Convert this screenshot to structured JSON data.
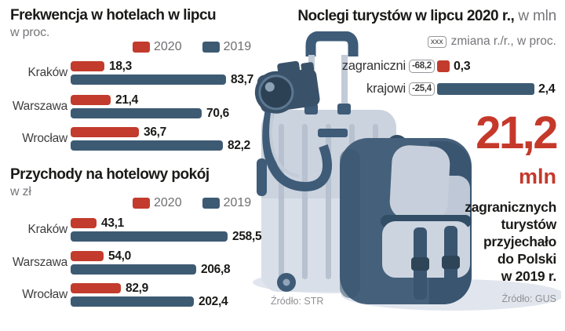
{
  "charts": {
    "occupancy": {
      "title": "Frekwencja w hotelach w lipcu",
      "subtitle": "w proc.",
      "legend": {
        "y2020": "2020",
        "y2019": "2019"
      },
      "rows": [
        {
          "city": "Kraków",
          "v2020": "18,3",
          "v2019": "83,7"
        },
        {
          "city": "Warszawa",
          "v2020": "21,4",
          "v2019": "70,6"
        },
        {
          "city": "Wrocław",
          "v2020": "36,7",
          "v2019": "82,2"
        }
      ]
    },
    "revenue": {
      "title": "Przychody na hotelowy pokój",
      "subtitle": "w zł",
      "legend": {
        "y2020": "2020",
        "y2019": "2019"
      },
      "rows": [
        {
          "city": "Kraków",
          "v2020": "43,1",
          "v2019": "258,5"
        },
        {
          "city": "Warszawa",
          "v2020": "54,0",
          "v2019": "206,8"
        },
        {
          "city": "Wrocław",
          "v2020": "82,9",
          "v2019": "202,4"
        }
      ]
    },
    "nights": {
      "title_bold": "Noclegi turystów w lipcu 2020 r.,",
      "title_light": " w mln",
      "note_box": "xxx",
      "note_text": "zmiana r./r., w proc.",
      "rows": [
        {
          "label": "zagraniczni",
          "change": "-68,2",
          "value": "0,3"
        },
        {
          "label": "krajowi",
          "change": "-25,4",
          "value": "2,4"
        }
      ]
    },
    "stat": {
      "number": "21,2",
      "unit": "mln",
      "lines": [
        "zagranicznych",
        "turystów",
        "przyjechało",
        "do Polski",
        "w 2019 r."
      ]
    }
  },
  "sources": {
    "left": "Źródło: STR",
    "right": "Źródło: GUS"
  },
  "colors": {
    "red_2020": "#c23b2c",
    "blue_2019": "#3d5a73",
    "stat_red": "#c5392b"
  },
  "chart_data": [
    {
      "type": "bar",
      "orientation": "horizontal",
      "title": "Frekwencja w hotelach w lipcu",
      "unit": "proc.",
      "categories": [
        "Kraków",
        "Warszawa",
        "Wrocław"
      ],
      "series": [
        {
          "name": "2020",
          "values": [
            18.3,
            21.4,
            36.7
          ]
        },
        {
          "name": "2019",
          "values": [
            83.7,
            70.6,
            82.2
          ]
        }
      ],
      "xlim": [
        0,
        90
      ],
      "grid": false,
      "legend_position": "top"
    },
    {
      "type": "bar",
      "orientation": "horizontal",
      "title": "Przychody na hotelowy pokój",
      "unit": "zł",
      "categories": [
        "Kraków",
        "Warszawa",
        "Wrocław"
      ],
      "series": [
        {
          "name": "2020",
          "values": [
            43.1,
            54.0,
            82.9
          ]
        },
        {
          "name": "2019",
          "values": [
            258.5,
            206.8,
            202.4
          ]
        }
      ],
      "xlim": [
        0,
        280
      ],
      "grid": false,
      "legend_position": "top"
    },
    {
      "type": "bar",
      "orientation": "horizontal",
      "title": "Noclegi turystów w lipcu 2020 r.",
      "unit": "mln",
      "categories": [
        "zagraniczni",
        "krajowi"
      ],
      "values": [
        0.3,
        2.4
      ],
      "change_yoy_pct": [
        -68.2,
        -25.4
      ],
      "xlim": [
        0,
        2.6
      ],
      "grid": false,
      "annotation": "21,2 mln zagranicznych turystów przyjechało do Polski w 2019 r."
    }
  ]
}
